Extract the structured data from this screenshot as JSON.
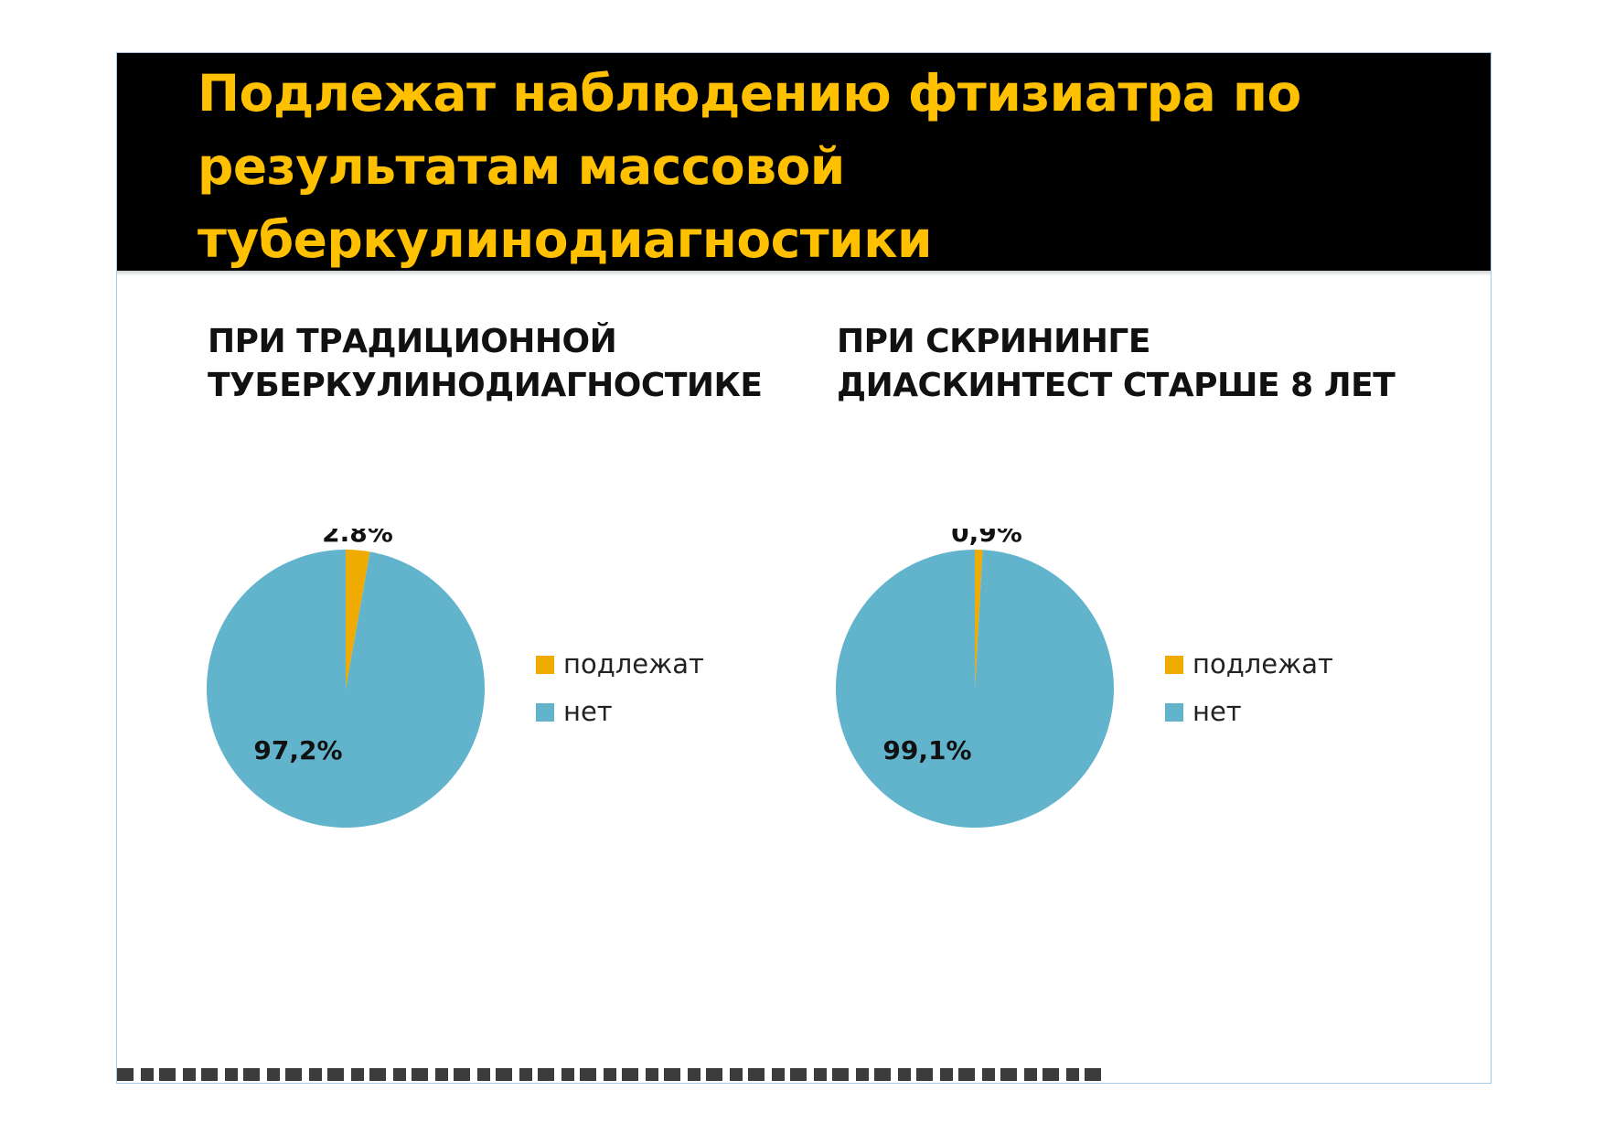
{
  "slide": {
    "title": "Подлежат   наблюдению фтизиатра по результатам массовой туберкулинодиагностики"
  },
  "colors": {
    "title_background": "#000000",
    "title_text": "#ffc000",
    "series_podlezhat": "#f0ab00",
    "series_net": "#62b4cc"
  },
  "chart_data": [
    {
      "type": "pie",
      "title": "ПРИ ТРАДИЦИОННОЙ ТУБЕРКУЛИНОДИАГНОСТИКЕ",
      "title_lines": [
        "ПРИ ТРАДИЦИОННОЙ",
        "ТУБЕРКУЛИНОДИАГНОСТИКЕ"
      ],
      "categories": [
        "подлежат",
        "нет"
      ],
      "values": [
        2.8,
        97.2
      ],
      "labels": [
        "2.8%",
        "97,2%"
      ],
      "colors": [
        "#f0ab00",
        "#62b4cc"
      ],
      "legend": "right"
    },
    {
      "type": "pie",
      "title": "ПРИ СКРИНИНГЕ ДИАСКИНТЕСТ СТАРШЕ 8 ЛЕТ",
      "title_lines": [
        "ПРИ СКРИНИНГЕ",
        "ДИАСКИНТЕСТ СТАРШЕ 8 ЛЕТ"
      ],
      "categories": [
        "подлежат",
        "нет"
      ],
      "values": [
        0.9,
        99.1
      ],
      "labels": [
        "0,9%",
        "99,1%"
      ],
      "colors": [
        "#f0ab00",
        "#62b4cc"
      ],
      "legend": "right"
    }
  ]
}
